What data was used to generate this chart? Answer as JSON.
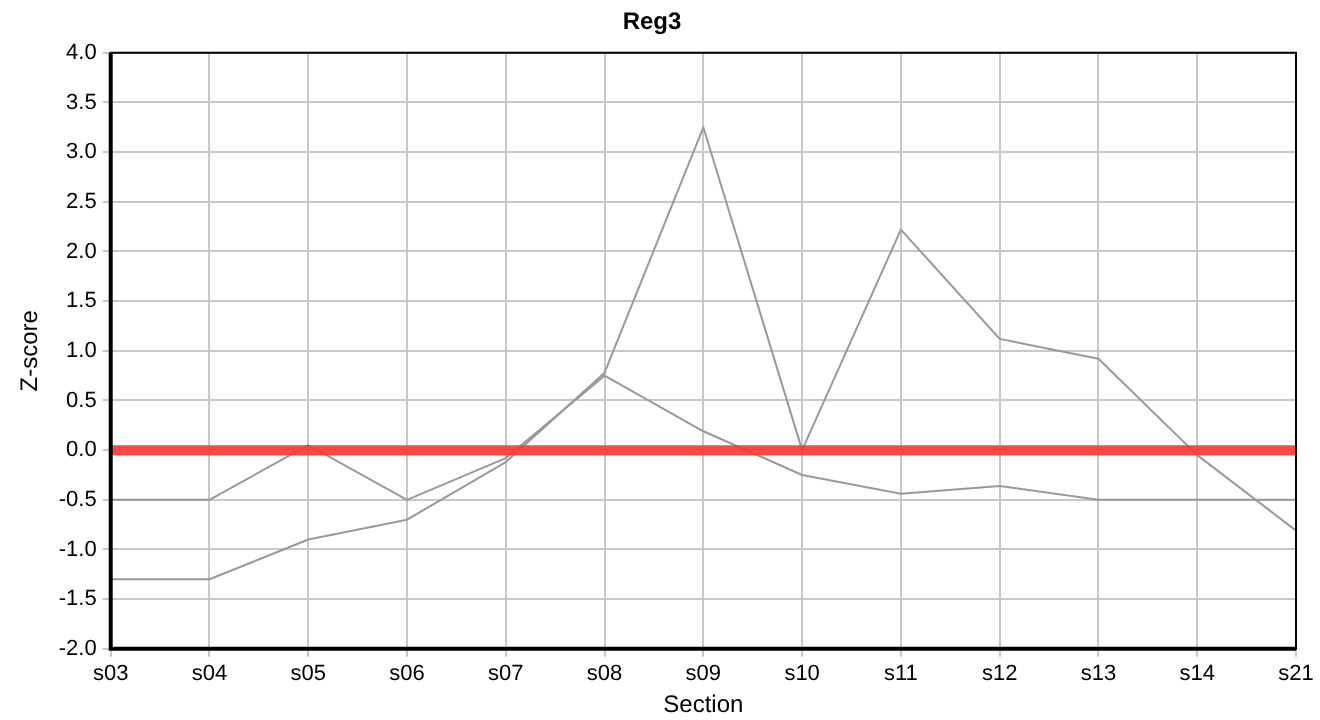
{
  "chart_data": {
    "type": "line",
    "title": "Reg3",
    "xlabel": "Section",
    "ylabel": "Z-score",
    "categories": [
      "s03",
      "s04",
      "s05",
      "s06",
      "s07",
      "s08",
      "s09",
      "s10",
      "s11",
      "s12",
      "s13",
      "s14",
      "s21"
    ],
    "series": [
      {
        "color": "#999999",
        "values": [
          -0.5,
          -0.5,
          0.05,
          -0.5,
          -0.08,
          0.75,
          0.19,
          -0.25,
          -0.44,
          -0.36,
          -0.5,
          -0.5,
          -0.5
        ]
      },
      {
        "color": "#999999",
        "values": [
          -1.3,
          -1.3,
          -0.9,
          -0.7,
          -0.12,
          0.78,
          3.25,
          0.0,
          2.22,
          1.12,
          0.92,
          -0.05,
          -0.81
        ]
      }
    ],
    "ylim": [
      -2.0,
      4.0
    ],
    "yticks": [
      {
        "value": -2,
        "label": "-2.0"
      },
      {
        "value": -1.5,
        "label": "-1.5"
      },
      {
        "value": -1,
        "label": "-1.0"
      },
      {
        "value": -0.5,
        "label": "-0.5"
      },
      {
        "value": 0,
        "label": "0.0"
      },
      {
        "value": 0.5,
        "label": "0.5"
      },
      {
        "value": 1,
        "label": "1.0"
      },
      {
        "value": 1.5,
        "label": "1.5"
      },
      {
        "value": 2,
        "label": "2.0"
      },
      {
        "value": 2.5,
        "label": "2.5"
      },
      {
        "value": 3,
        "label": "3.0"
      },
      {
        "value": 3.5,
        "label": "3.5"
      },
      {
        "value": 4,
        "label": "4.0"
      }
    ],
    "ref_lines": [
      {
        "axis": "y",
        "value": 0,
        "color": "#ff3333"
      }
    ],
    "grid": true,
    "legend": false,
    "marker": "none",
    "line_style": "solid"
  }
}
